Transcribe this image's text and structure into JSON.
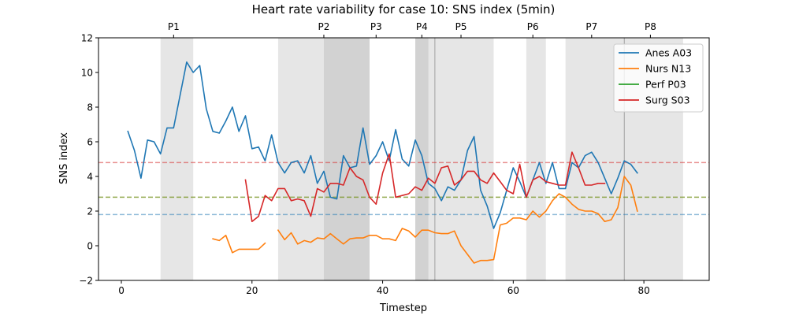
{
  "chart_data": {
    "type": "line",
    "title": "Heart rate variability for case 10: SNS index (5min)",
    "xlabel": "Timestep",
    "ylabel": "SNS index",
    "xlim": [
      -3.5,
      90
    ],
    "ylim": [
      -2,
      12
    ],
    "xticks": [
      0,
      20,
      40,
      60,
      80
    ],
    "yticks": [
      -2,
      0,
      2,
      4,
      6,
      8,
      10,
      12
    ],
    "grid": false,
    "legend_position": "top-right",
    "phase_labels": [
      {
        "label": "P1",
        "x": 8
      },
      {
        "label": "P2",
        "x": 31
      },
      {
        "label": "P3",
        "x": 39
      },
      {
        "label": "P4",
        "x": 46
      },
      {
        "label": "P5",
        "x": 52
      },
      {
        "label": "P6",
        "x": 63
      },
      {
        "label": "P7",
        "x": 72
      },
      {
        "label": "P8",
        "x": 81
      }
    ],
    "shaded_regions": [
      {
        "x0": 6,
        "x1": 11,
        "alpha": 0.2
      },
      {
        "x0": 24,
        "x1": 38,
        "alpha": 0.2
      },
      {
        "x0": 31,
        "x1": 38,
        "alpha": 0.2
      },
      {
        "x0": 45,
        "x1": 57,
        "alpha": 0.2
      },
      {
        "x0": 45,
        "x1": 47,
        "alpha": 0.2
      },
      {
        "x0": 62,
        "x1": 65,
        "alpha": 0.2
      },
      {
        "x0": 68,
        "x1": 86,
        "alpha": 0.2
      }
    ],
    "vertical_lines": [
      48,
      77
    ],
    "reference_lines": [
      {
        "y": 4.8,
        "color": "#d62728"
      },
      {
        "y": 2.8,
        "color": "#ff7f0e"
      },
      {
        "y": 2.8,
        "color": "#2ca02c"
      },
      {
        "y": 1.8,
        "color": "#1f77b4"
      }
    ],
    "series": [
      {
        "name": "Anes A03",
        "color": "#1f77b4",
        "points": [
          [
            1,
            6.6
          ],
          [
            2,
            5.5
          ],
          [
            3,
            3.9
          ],
          [
            4,
            6.1
          ],
          [
            5,
            6.0
          ],
          [
            6,
            5.3
          ],
          [
            7,
            6.8
          ],
          [
            8,
            6.8
          ],
          [
            9,
            8.7
          ],
          [
            10,
            10.6
          ],
          [
            11,
            10.0
          ],
          [
            12,
            10.4
          ],
          [
            13,
            7.9
          ],
          [
            14,
            6.6
          ],
          [
            15,
            6.5
          ],
          [
            16,
            7.2
          ],
          [
            17,
            8.0
          ],
          [
            18,
            6.6
          ],
          [
            19,
            7.5
          ],
          [
            20,
            5.6
          ],
          [
            21,
            5.7
          ],
          [
            22,
            4.9
          ],
          [
            23,
            6.4
          ],
          [
            24,
            4.8
          ],
          [
            25,
            4.2
          ],
          [
            26,
            4.8
          ],
          [
            27,
            4.9
          ],
          [
            28,
            4.2
          ],
          [
            29,
            5.2
          ],
          [
            30,
            3.6
          ],
          [
            31,
            4.3
          ],
          [
            32,
            2.8
          ],
          [
            33,
            2.7
          ],
          [
            34,
            5.2
          ],
          [
            35,
            4.5
          ],
          [
            36,
            4.6
          ],
          [
            37,
            6.8
          ],
          [
            38,
            4.7
          ],
          [
            39,
            5.2
          ],
          [
            40,
            6.0
          ],
          [
            41,
            4.9
          ],
          [
            42,
            6.7
          ],
          [
            43,
            5.0
          ],
          [
            44,
            4.6
          ],
          [
            45,
            6.1
          ],
          [
            46,
            5.2
          ],
          [
            47,
            3.6
          ],
          [
            48,
            3.3
          ],
          [
            49,
            2.6
          ],
          [
            50,
            3.4
          ],
          [
            51,
            3.2
          ],
          [
            52,
            3.8
          ],
          [
            53,
            5.5
          ],
          [
            54,
            6.3
          ],
          [
            55,
            3.2
          ],
          [
            56,
            2.3
          ],
          [
            57,
            1.0
          ],
          [
            58,
            1.9
          ],
          [
            59,
            3.2
          ],
          [
            60,
            4.5
          ],
          [
            61,
            3.7
          ],
          [
            62,
            2.8
          ],
          [
            63,
            3.8
          ],
          [
            64,
            4.8
          ],
          [
            65,
            3.6
          ],
          [
            66,
            4.8
          ],
          [
            67,
            3.3
          ],
          [
            68,
            3.3
          ],
          [
            69,
            4.8
          ],
          [
            70,
            4.5
          ],
          [
            71,
            5.2
          ],
          [
            72,
            5.4
          ],
          [
            73,
            4.8
          ],
          [
            74,
            3.9
          ],
          [
            75,
            3.0
          ],
          [
            76,
            3.9
          ],
          [
            77,
            4.9
          ],
          [
            78,
            4.7
          ],
          [
            79,
            4.2
          ]
        ]
      },
      {
        "name": "Nurs N13",
        "color": "#ff7f0e",
        "segments": [
          [
            [
              14,
              0.4
            ],
            [
              15,
              0.3
            ],
            [
              16,
              0.6
            ],
            [
              17,
              -0.4
            ],
            [
              18,
              -0.2
            ],
            [
              19,
              -0.2
            ],
            [
              20,
              -0.2
            ],
            [
              21,
              -0.2
            ],
            [
              22,
              0.15
            ]
          ],
          [
            [
              24,
              0.9
            ],
            [
              25,
              0.35
            ],
            [
              26,
              0.75
            ],
            [
              27,
              0.1
            ],
            [
              28,
              0.3
            ],
            [
              29,
              0.2
            ],
            [
              30,
              0.45
            ],
            [
              31,
              0.4
            ],
            [
              32,
              0.7
            ],
            [
              33,
              0.4
            ],
            [
              34,
              0.1
            ],
            [
              35,
              0.4
            ],
            [
              36,
              0.45
            ],
            [
              37,
              0.45
            ],
            [
              38,
              0.6
            ],
            [
              39,
              0.6
            ],
            [
              40,
              0.4
            ],
            [
              41,
              0.4
            ],
            [
              42,
              0.3
            ],
            [
              43,
              1.0
            ],
            [
              44,
              0.85
            ],
            [
              45,
              0.5
            ],
            [
              46,
              0.9
            ],
            [
              47,
              0.9
            ],
            [
              48,
              0.75
            ],
            [
              49,
              0.7
            ],
            [
              50,
              0.7
            ],
            [
              51,
              0.85
            ],
            [
              52,
              0.0
            ],
            [
              53,
              -0.5
            ],
            [
              54,
              -1.0
            ],
            [
              55,
              -0.85
            ],
            [
              56,
              -0.85
            ],
            [
              57,
              -0.8
            ],
            [
              58,
              1.2
            ],
            [
              59,
              1.3
            ],
            [
              60,
              1.6
            ],
            [
              61,
              1.6
            ],
            [
              62,
              1.5
            ],
            [
              63,
              2.0
            ],
            [
              64,
              1.65
            ],
            [
              65,
              2.0
            ],
            [
              66,
              2.6
            ],
            [
              67,
              3.0
            ],
            [
              68,
              2.8
            ],
            [
              69,
              2.4
            ],
            [
              70,
              2.1
            ],
            [
              71,
              2.0
            ],
            [
              72,
              2.0
            ],
            [
              73,
              1.85
            ],
            [
              74,
              1.4
            ],
            [
              75,
              1.5
            ],
            [
              76,
              2.2
            ],
            [
              77,
              4.0
            ],
            [
              78,
              3.5
            ],
            [
              79,
              2.0
            ]
          ]
        ]
      },
      {
        "name": "Perf P03",
        "color": "#2ca02c",
        "points": []
      },
      {
        "name": "Surg S03",
        "color": "#d62728",
        "points": [
          [
            19,
            3.8
          ],
          [
            20,
            1.4
          ],
          [
            21,
            1.7
          ],
          [
            22,
            2.9
          ],
          [
            23,
            2.6
          ],
          [
            24,
            3.3
          ],
          [
            25,
            3.3
          ],
          [
            26,
            2.6
          ],
          [
            27,
            2.7
          ],
          [
            28,
            2.6
          ],
          [
            29,
            1.7
          ],
          [
            30,
            3.3
          ],
          [
            31,
            3.1
          ],
          [
            32,
            3.6
          ],
          [
            33,
            3.6
          ],
          [
            34,
            3.5
          ],
          [
            35,
            4.5
          ],
          [
            36,
            4.0
          ],
          [
            37,
            3.8
          ],
          [
            38,
            2.8
          ],
          [
            39,
            2.4
          ],
          [
            40,
            4.2
          ],
          [
            41,
            5.3
          ],
          [
            42,
            2.8
          ],
          [
            43,
            2.9
          ],
          [
            44,
            3.0
          ],
          [
            45,
            3.4
          ],
          [
            46,
            3.2
          ],
          [
            47,
            3.9
          ],
          [
            48,
            3.6
          ],
          [
            49,
            4.5
          ],
          [
            50,
            4.6
          ],
          [
            51,
            3.5
          ],
          [
            52,
            3.8
          ],
          [
            53,
            4.3
          ],
          [
            54,
            4.3
          ],
          [
            55,
            3.8
          ],
          [
            56,
            3.6
          ],
          [
            57,
            4.2
          ],
          [
            58,
            3.7
          ],
          [
            59,
            3.2
          ],
          [
            60,
            3.0
          ],
          [
            61,
            4.7
          ],
          [
            62,
            2.8
          ],
          [
            63,
            3.8
          ],
          [
            64,
            4.0
          ],
          [
            65,
            3.7
          ],
          [
            66,
            3.6
          ],
          [
            67,
            3.5
          ],
          [
            68,
            3.5
          ],
          [
            69,
            5.4
          ],
          [
            70,
            4.5
          ],
          [
            71,
            3.5
          ],
          [
            72,
            3.5
          ],
          [
            73,
            3.6
          ],
          [
            74,
            3.6
          ]
        ]
      }
    ]
  }
}
